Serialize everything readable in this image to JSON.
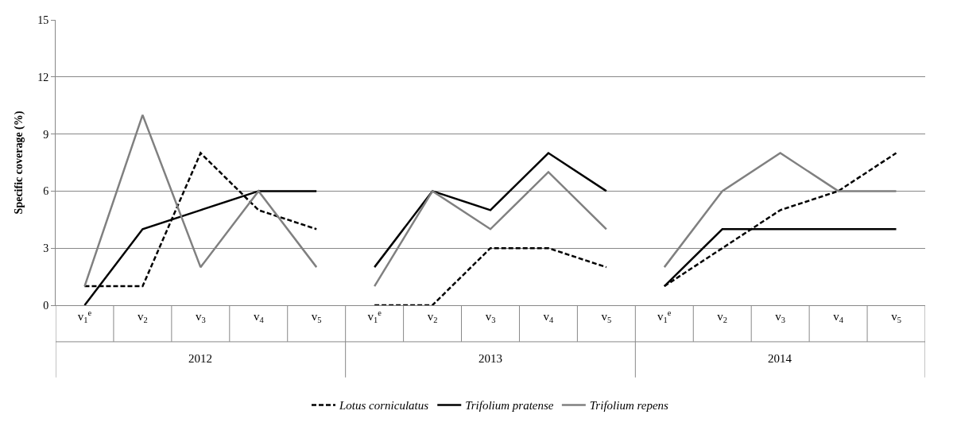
{
  "chart_data": {
    "type": "line",
    "ylabel": "Specific coverage (%)",
    "categories": [
      "v$_{1}$$^{e}$",
      "v$_{2}$",
      "v$_{3}$",
      "v$_{4}$",
      "v$_{5}$",
      "v$_{1}$$^{e}$",
      "v$_{2}$",
      "v$_{3}$",
      "v$_{4}$",
      "v$_{5}$",
      "v$_{1}$$^{e}$",
      "v$_{2}$",
      "v$_{3}$",
      "v$_{4}$",
      "v$_{5}$"
    ],
    "series": [
      {
        "name": "Lotus corniculatus",
        "color": "#000000",
        "line_style": "dashed",
        "values": [
          1,
          1,
          8,
          5,
          4,
          0,
          0,
          3,
          3,
          2,
          1,
          3,
          5,
          6,
          8
        ]
      },
      {
        "name": "Trifolium pratense",
        "color": "#000000",
        "line_style": "solid",
        "values": [
          0,
          4,
          5,
          6,
          6,
          2,
          6,
          5,
          8,
          6,
          1,
          4,
          4,
          4,
          4
        ]
      },
      {
        "name": "Trifolium repens",
        "color": "#808080",
        "line_style": "solid",
        "values": [
          1,
          10,
          2,
          6,
          2,
          1,
          6,
          4,
          7,
          4,
          2,
          6,
          8,
          6,
          6
        ]
      }
    ],
    "annotations": [
      "2012",
      "2013",
      "2014"
    ],
    "ylim": [
      0,
      15
    ],
    "yticks": [
      0,
      3,
      6,
      9,
      12,
      15
    ],
    "grid": "y",
    "legend": "bottom",
    "marker": "none"
  }
}
